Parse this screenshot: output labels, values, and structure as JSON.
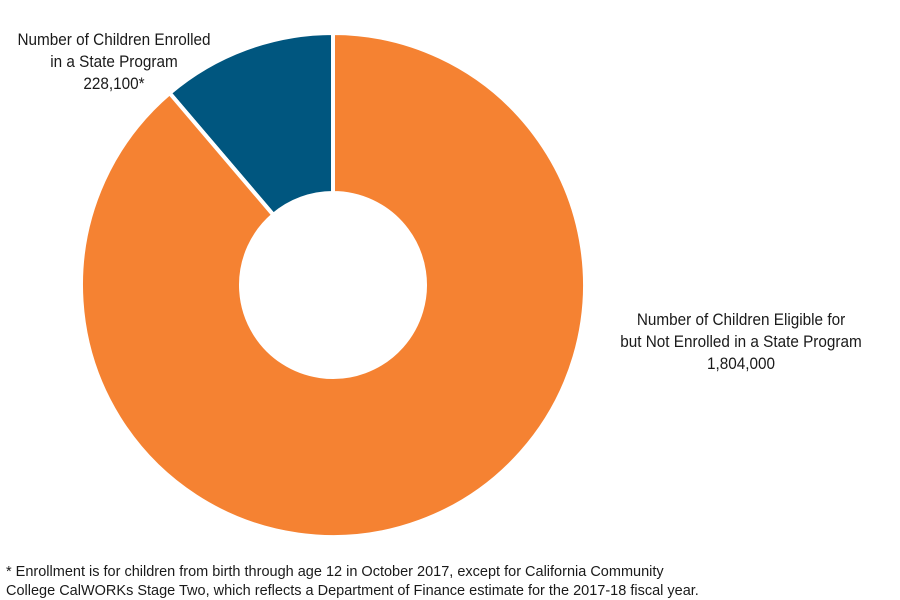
{
  "chart_data": {
    "type": "pie",
    "donut": true,
    "title": "",
    "colors": {
      "enrolled": "#00567F",
      "eligible_not_enrolled": "#F58232",
      "separator": "#FFFFFF"
    },
    "slices": [
      {
        "key": "enrolled",
        "label_lines": [
          "Number of Children Enrolled",
          "in a State Program",
          "228,100*"
        ],
        "value": 228100,
        "color": "#00567F"
      },
      {
        "key": "eligible_not_enrolled",
        "label_lines": [
          "Number of Children Eligible for",
          "but Not Enrolled in a State Program",
          "1,804,000"
        ],
        "value": 1804000,
        "color": "#F58232"
      }
    ],
    "footnote_lines": [
      "* Enrollment is for children from birth through age 12 in October 2017, except for California Community",
      "College CalWORKs Stage Two, which reflects a Department of Finance estimate for the 2017-18 fiscal year."
    ]
  }
}
